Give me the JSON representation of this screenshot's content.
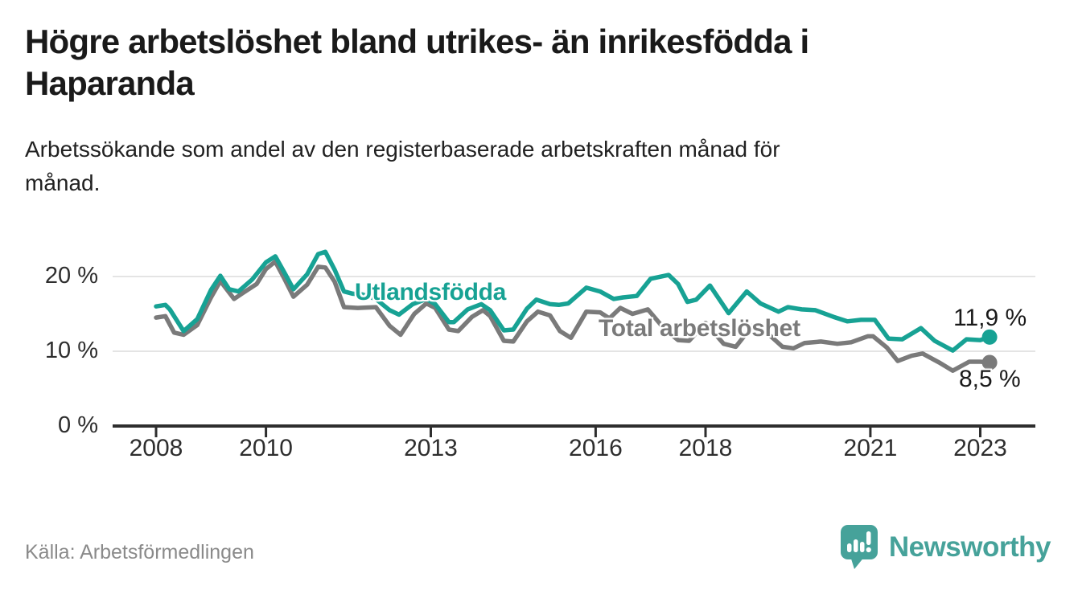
{
  "title_lines": [
    "Högre arbetslöshet bland utrikes- än inrikesfödda i",
    "Haparanda"
  ],
  "subtitle_lines": [
    "Arbetssökande som andel av den registerbaserade arbetskraften månad för",
    "månad."
  ],
  "source": "Källa: Arbetsförmedlingen",
  "logo": {
    "name": "Newsworthy"
  },
  "colors": {
    "foreign_series": "#17A294",
    "total_series": "#7A7A7A",
    "axis": "#2e2e2e",
    "gridline": "#e4e4e4",
    "annotation_text": "#1a1a1a",
    "source_text": "#8a8a8a",
    "logo_teal": "#46A29A"
  },
  "chart_data": {
    "type": "line",
    "unit": "%",
    "grid": "horizontal",
    "legend_position": "inline-labels",
    "x_axis": {
      "ticks": [
        2008,
        2010,
        2013,
        2016,
        2018,
        2021,
        2023
      ],
      "range": [
        2007.2,
        2024.0
      ]
    },
    "y_axis": {
      "ticks": [
        0,
        10,
        20
      ],
      "tick_labels": [
        "0 %",
        "10 %",
        "20 %"
      ],
      "range": [
        0,
        26
      ]
    },
    "series": [
      {
        "name": "Utlandsfödda",
        "color": "#17A294",
        "end_label": "11,9 %",
        "end_value": 11.9,
        "points": [
          [
            2008.0,
            16.0
          ],
          [
            2008.17,
            16.2
          ],
          [
            2008.25,
            15.6
          ],
          [
            2008.5,
            12.7
          ],
          [
            2008.75,
            14.3
          ],
          [
            2009.0,
            18.2
          ],
          [
            2009.17,
            20.1
          ],
          [
            2009.33,
            18.3
          ],
          [
            2009.5,
            18.0
          ],
          [
            2009.75,
            19.6
          ],
          [
            2010.0,
            21.9
          ],
          [
            2010.17,
            22.7
          ],
          [
            2010.33,
            20.6
          ],
          [
            2010.5,
            18.3
          ],
          [
            2010.75,
            20.3
          ],
          [
            2010.95,
            23.0
          ],
          [
            2011.08,
            23.3
          ],
          [
            2011.25,
            20.9
          ],
          [
            2011.42,
            18.0
          ],
          [
            2011.58,
            17.7
          ],
          [
            2011.75,
            17.6
          ],
          [
            2012.0,
            17.0
          ],
          [
            2012.25,
            15.5
          ],
          [
            2012.42,
            14.9
          ],
          [
            2012.67,
            16.3
          ],
          [
            2012.92,
            17.0
          ],
          [
            2013.08,
            16.3
          ],
          [
            2013.33,
            13.9
          ],
          [
            2013.42,
            13.9
          ],
          [
            2013.67,
            15.6
          ],
          [
            2013.92,
            16.3
          ],
          [
            2014.08,
            15.5
          ],
          [
            2014.33,
            12.8
          ],
          [
            2014.5,
            12.9
          ],
          [
            2014.75,
            15.7
          ],
          [
            2014.92,
            16.9
          ],
          [
            2015.17,
            16.3
          ],
          [
            2015.33,
            16.2
          ],
          [
            2015.5,
            16.4
          ],
          [
            2015.83,
            18.5
          ],
          [
            2016.08,
            18.0
          ],
          [
            2016.33,
            17.0
          ],
          [
            2016.5,
            17.2
          ],
          [
            2016.75,
            17.4
          ],
          [
            2017.0,
            19.7
          ],
          [
            2017.33,
            20.2
          ],
          [
            2017.5,
            19.0
          ],
          [
            2017.67,
            16.6
          ],
          [
            2017.83,
            16.9
          ],
          [
            2018.08,
            18.8
          ],
          [
            2018.42,
            15.1
          ],
          [
            2018.75,
            18.0
          ],
          [
            2019.0,
            16.4
          ],
          [
            2019.33,
            15.3
          ],
          [
            2019.5,
            15.9
          ],
          [
            2019.75,
            15.6
          ],
          [
            2020.0,
            15.5
          ],
          [
            2020.33,
            14.6
          ],
          [
            2020.58,
            14.0
          ],
          [
            2020.83,
            14.2
          ],
          [
            2021.08,
            14.2
          ],
          [
            2021.33,
            11.7
          ],
          [
            2021.58,
            11.6
          ],
          [
            2021.92,
            13.1
          ],
          [
            2022.17,
            11.4
          ],
          [
            2022.5,
            10.1
          ],
          [
            2022.75,
            11.6
          ],
          [
            2023.0,
            11.5
          ],
          [
            2023.17,
            11.9
          ]
        ]
      },
      {
        "name": "Total arbetslöshet",
        "color": "#7A7A7A",
        "end_label": "8,5 %",
        "end_value": 8.5,
        "points": [
          [
            2008.0,
            14.5
          ],
          [
            2008.17,
            14.7
          ],
          [
            2008.33,
            12.5
          ],
          [
            2008.5,
            12.2
          ],
          [
            2008.75,
            13.5
          ],
          [
            2009.0,
            17.2
          ],
          [
            2009.17,
            19.4
          ],
          [
            2009.42,
            17.0
          ],
          [
            2009.58,
            17.8
          ],
          [
            2009.83,
            19.0
          ],
          [
            2010.0,
            21.0
          ],
          [
            2010.17,
            22.0
          ],
          [
            2010.33,
            19.8
          ],
          [
            2010.5,
            17.3
          ],
          [
            2010.75,
            18.9
          ],
          [
            2010.95,
            21.3
          ],
          [
            2011.08,
            21.2
          ],
          [
            2011.25,
            19.3
          ],
          [
            2011.42,
            15.9
          ],
          [
            2011.67,
            15.8
          ],
          [
            2012.0,
            15.9
          ],
          [
            2012.25,
            13.4
          ],
          [
            2012.45,
            12.2
          ],
          [
            2012.7,
            15.0
          ],
          [
            2012.92,
            16.4
          ],
          [
            2013.08,
            15.8
          ],
          [
            2013.33,
            12.9
          ],
          [
            2013.5,
            12.7
          ],
          [
            2013.75,
            14.6
          ],
          [
            2013.95,
            15.5
          ],
          [
            2014.08,
            14.7
          ],
          [
            2014.33,
            11.4
          ],
          [
            2014.5,
            11.3
          ],
          [
            2014.75,
            14.0
          ],
          [
            2014.95,
            15.3
          ],
          [
            2015.17,
            14.8
          ],
          [
            2015.35,
            12.7
          ],
          [
            2015.55,
            11.8
          ],
          [
            2015.83,
            15.3
          ],
          [
            2016.08,
            15.2
          ],
          [
            2016.25,
            14.4
          ],
          [
            2016.45,
            15.8
          ],
          [
            2016.67,
            15.0
          ],
          [
            2016.95,
            15.6
          ],
          [
            2017.25,
            13.0
          ],
          [
            2017.5,
            11.5
          ],
          [
            2017.7,
            11.4
          ],
          [
            2018.0,
            13.8
          ],
          [
            2018.33,
            11.0
          ],
          [
            2018.55,
            10.6
          ],
          [
            2018.85,
            13.4
          ],
          [
            2019.1,
            12.6
          ],
          [
            2019.4,
            10.6
          ],
          [
            2019.6,
            10.4
          ],
          [
            2019.8,
            11.1
          ],
          [
            2020.1,
            11.3
          ],
          [
            2020.4,
            11.0
          ],
          [
            2020.65,
            11.2
          ],
          [
            2020.95,
            12.0
          ],
          [
            2021.05,
            12.0
          ],
          [
            2021.3,
            10.5
          ],
          [
            2021.5,
            8.7
          ],
          [
            2021.75,
            9.4
          ],
          [
            2021.95,
            9.7
          ],
          [
            2022.25,
            8.5
          ],
          [
            2022.5,
            7.4
          ],
          [
            2022.8,
            8.6
          ],
          [
            2023.0,
            8.6
          ],
          [
            2023.17,
            8.5
          ]
        ]
      }
    ]
  }
}
